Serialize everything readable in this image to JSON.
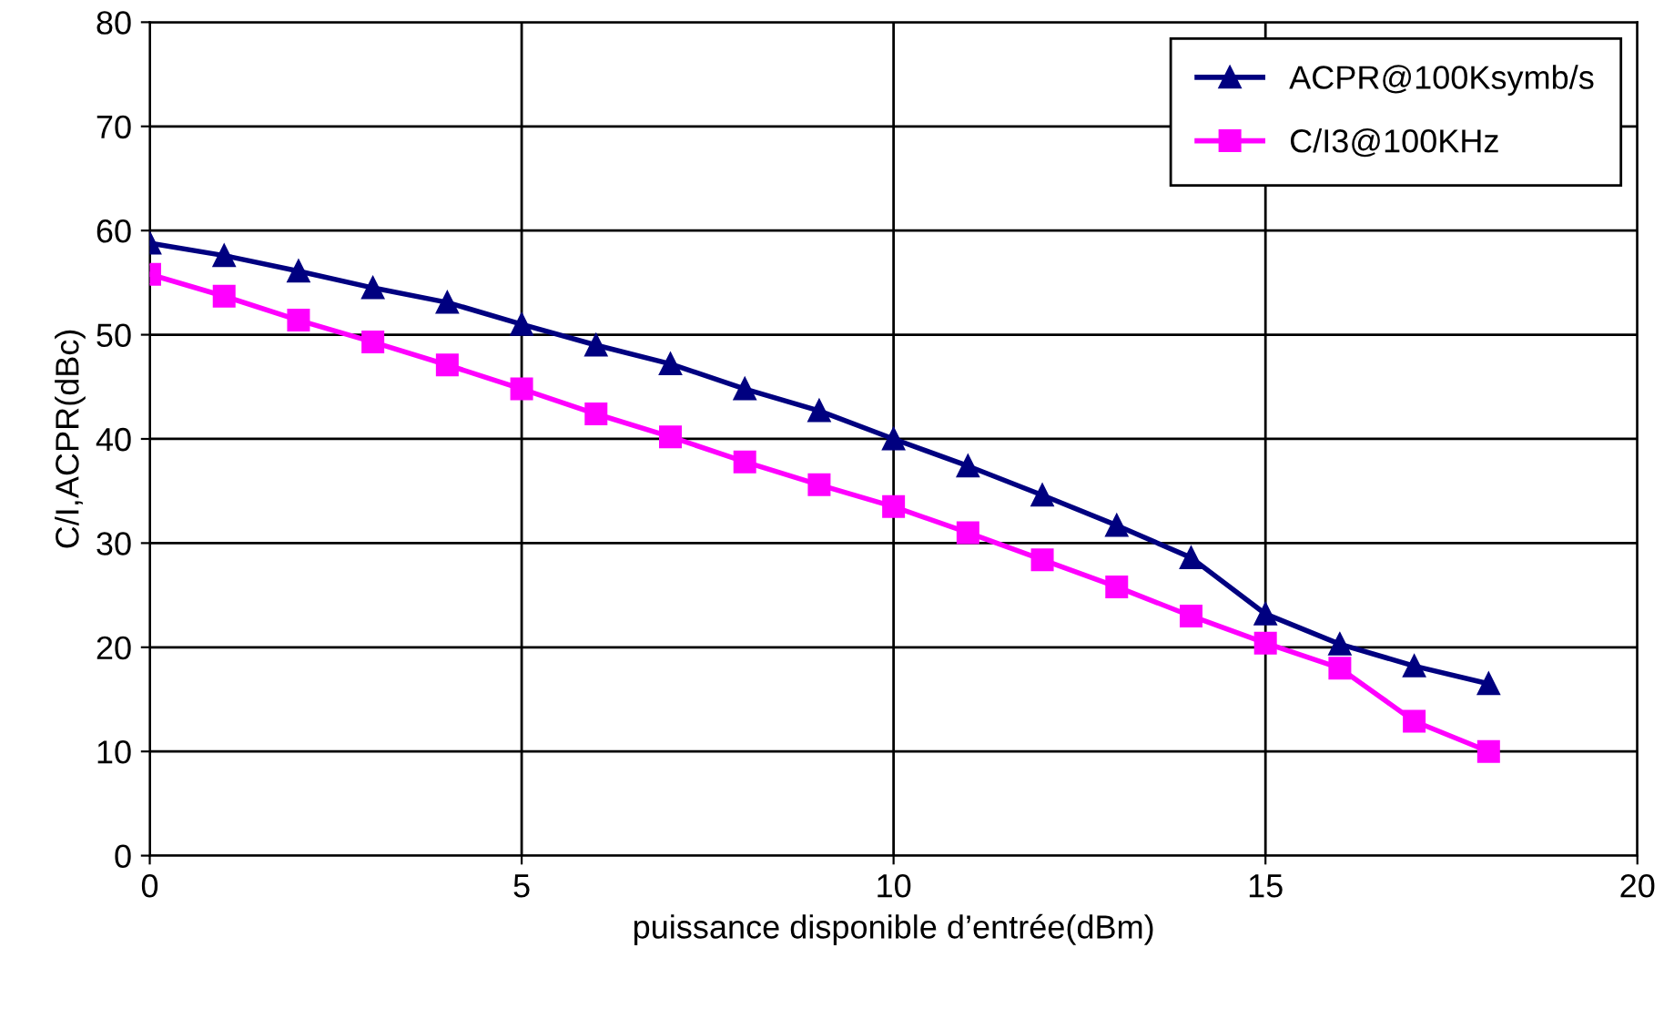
{
  "chart_data": {
    "type": "line",
    "xlabel": "puissance disponible d’entrée(dBm)",
    "ylabel": "C/I,ACPR(dBc)",
    "x": [
      0,
      1,
      2,
      3,
      4,
      5,
      6,
      7,
      8,
      9,
      10,
      11,
      12,
      13,
      14,
      15,
      16,
      17,
      18
    ],
    "series": [
      {
        "name": "ACPR@100Ksymb/s",
        "color": "#000080",
        "marker": "triangle",
        "values": [
          58.8,
          57.6,
          56.1,
          54.5,
          53.1,
          51.0,
          49.0,
          47.2,
          44.8,
          42.7,
          40.0,
          37.4,
          34.6,
          31.7,
          28.6,
          23.2,
          20.3,
          18.2,
          16.5
        ]
      },
      {
        "name": "C/I3@100KHz",
        "color": "#ff00ff",
        "marker": "square",
        "values": [
          55.8,
          53.7,
          51.4,
          49.3,
          47.1,
          44.8,
          42.4,
          40.2,
          37.8,
          35.6,
          33.5,
          31.0,
          28.4,
          25.8,
          23.0,
          20.4,
          18.0,
          12.9,
          10.0
        ]
      }
    ],
    "xlim": [
      0,
      20
    ],
    "xticks": [
      0,
      5,
      10,
      15,
      20
    ],
    "ylim": [
      0,
      80
    ],
    "yticks": [
      0,
      10,
      20,
      30,
      40,
      50,
      60,
      70,
      80
    ],
    "grid": true,
    "legend": "top right"
  }
}
